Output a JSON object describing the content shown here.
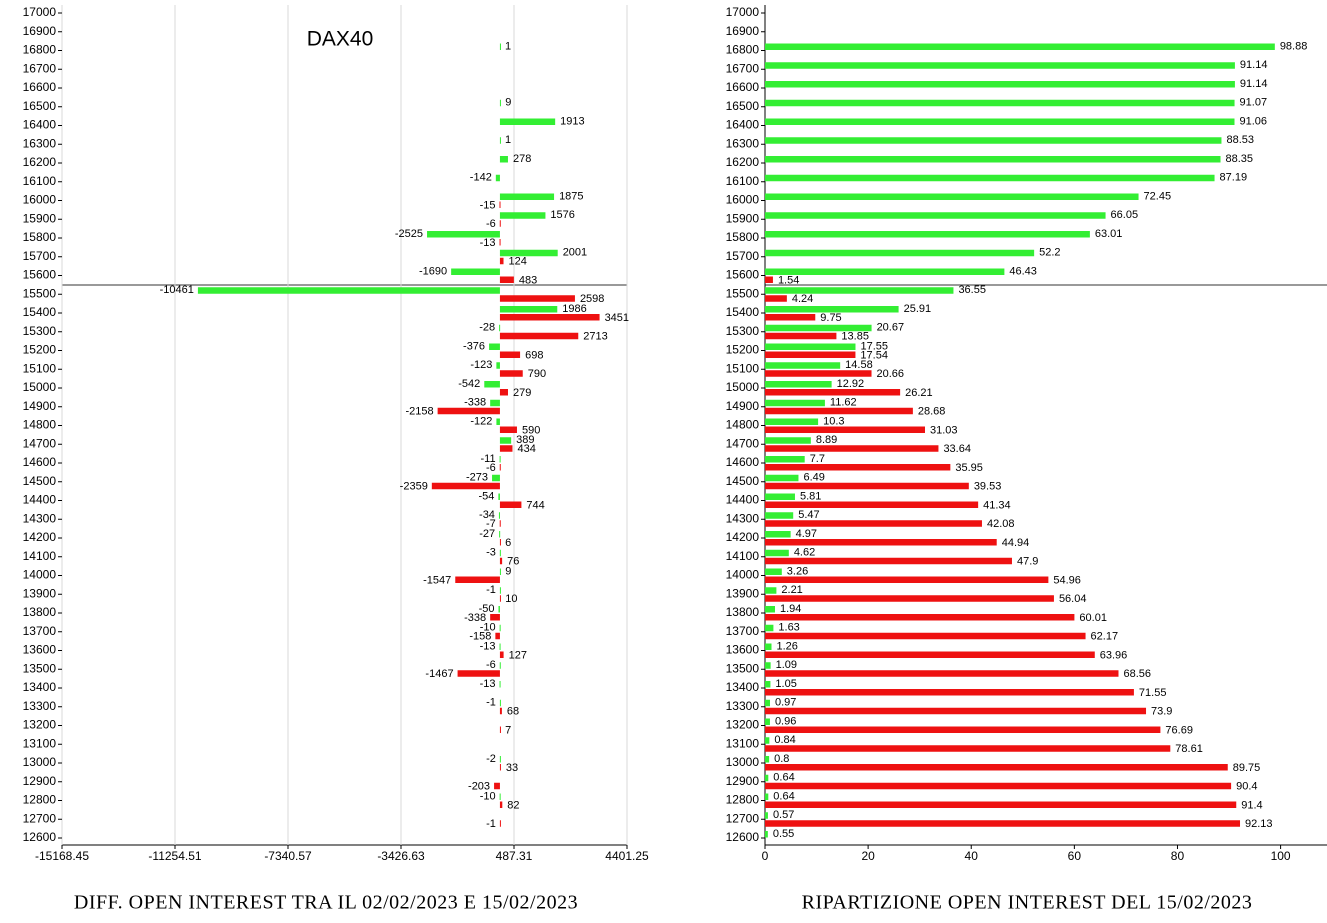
{
  "chart_data": [
    {
      "type": "bar",
      "orientation": "horizontal",
      "title": "DAX40",
      "caption": "DIFF. OPEN INTEREST TRA IL 02/02/2023 E 15/02/2023",
      "categories": [
        17000,
        16900,
        16800,
        16700,
        16600,
        16500,
        16400,
        16300,
        16200,
        16100,
        16000,
        15900,
        15800,
        15700,
        15600,
        15500,
        15400,
        15300,
        15200,
        15100,
        15000,
        14900,
        14800,
        14700,
        14600,
        14500,
        14400,
        14300,
        14200,
        14100,
        14000,
        13900,
        13800,
        13700,
        13600,
        13500,
        13400,
        13300,
        13200,
        13100,
        13000,
        12900,
        12800,
        12700,
        12600
      ],
      "series": [
        {
          "color": "#33ee33",
          "values": [
            null,
            null,
            1,
            null,
            null,
            9,
            1913,
            1,
            278,
            -142,
            1875,
            1576,
            -2525,
            2001,
            -1690,
            -10461,
            1986,
            -28,
            -376,
            -123,
            -542,
            -338,
            -122,
            389,
            -11,
            -273,
            -54,
            -34,
            -27,
            -3,
            9,
            -1,
            -50,
            -10,
            -13,
            -6,
            -13,
            -1,
            null,
            null,
            -2,
            null,
            -10,
            null,
            null
          ]
        },
        {
          "color": "#ee1111",
          "values": [
            null,
            null,
            null,
            null,
            null,
            null,
            null,
            null,
            null,
            null,
            -15,
            -6,
            -13,
            124,
            483,
            2598,
            3451,
            2713,
            698,
            790,
            279,
            -2158,
            590,
            434,
            -6,
            -2359,
            744,
            -7,
            6,
            76,
            -1547,
            10,
            -338,
            -158,
            127,
            -1467,
            null,
            68,
            7,
            null,
            33,
            -203,
            82,
            -1,
            null
          ]
        }
      ],
      "xlim": [
        -15168.45,
        4401.25
      ],
      "xticks": [
        -15168.45,
        -11254.51,
        -7340.57,
        -3426.63,
        487.31,
        4401.25
      ],
      "grid": true
    },
    {
      "type": "bar",
      "orientation": "horizontal",
      "caption": "RIPARTIZIONE OPEN INTEREST DEL 15/02/2023",
      "categories": [
        17000,
        16900,
        16800,
        16700,
        16600,
        16500,
        16400,
        16300,
        16200,
        16100,
        16000,
        15900,
        15800,
        15700,
        15600,
        15500,
        15400,
        15300,
        15200,
        15100,
        15000,
        14900,
        14800,
        14700,
        14600,
        14500,
        14400,
        14300,
        14200,
        14100,
        14000,
        13900,
        13800,
        13700,
        13600,
        13500,
        13400,
        13300,
        13200,
        13100,
        13000,
        12900,
        12800,
        12700,
        12600
      ],
      "series": [
        {
          "color": "#33ee33",
          "values": [
            null,
            null,
            98.88,
            91.14,
            91.14,
            91.07,
            91.06,
            88.53,
            88.35,
            87.19,
            72.45,
            66.05,
            63.01,
            52.2,
            46.43,
            36.55,
            25.91,
            20.67,
            17.55,
            14.58,
            12.92,
            11.62,
            10.3,
            8.89,
            7.7,
            6.49,
            5.81,
            5.47,
            4.97,
            4.62,
            3.26,
            2.21,
            1.94,
            1.63,
            1.26,
            1.09,
            1.05,
            0.97,
            0.96,
            0.84,
            0.8,
            0.64,
            0.64,
            0.57,
            0.55
          ]
        },
        {
          "color": "#ee1111",
          "values": [
            null,
            null,
            null,
            null,
            null,
            null,
            null,
            null,
            null,
            null,
            null,
            null,
            null,
            null,
            1.54,
            4.24,
            9.75,
            13.85,
            17.54,
            20.66,
            26.21,
            28.68,
            31.03,
            33.64,
            35.95,
            39.53,
            41.34,
            42.08,
            44.94,
            47.9,
            54.96,
            56.04,
            60.01,
            62.17,
            63.96,
            68.56,
            71.55,
            73.9,
            76.69,
            78.61,
            89.75,
            90.4,
            91.4,
            92.13,
            null
          ]
        }
      ],
      "xlim": [
        0,
        109
      ],
      "xticks": [
        0,
        20,
        40,
        60,
        80,
        100
      ],
      "grid": false
    }
  ]
}
